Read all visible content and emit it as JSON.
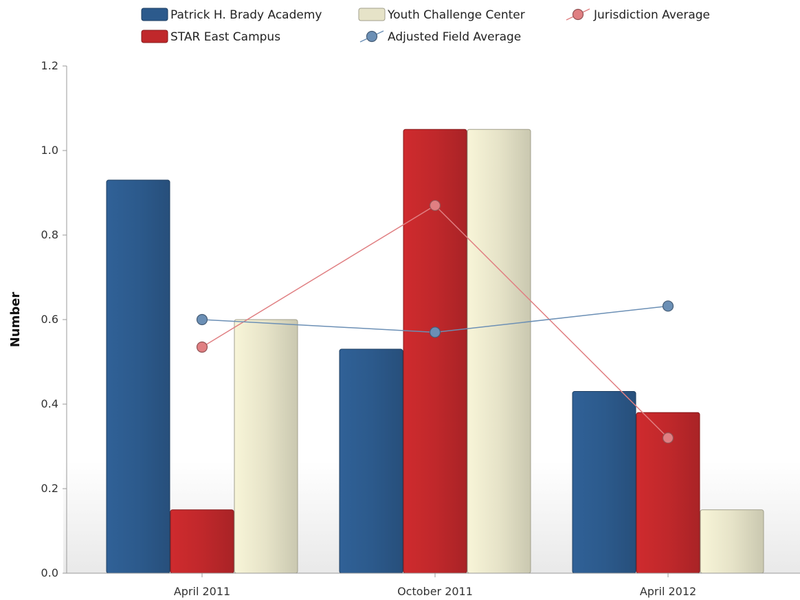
{
  "chart_data": {
    "type": "bar",
    "categories": [
      "April 2011",
      "October 2011",
      "April 2012"
    ],
    "series": [
      {
        "name": "Patrick H. Brady Academy",
        "kind": "bar",
        "color": "#2c5a8c",
        "values": [
          0.93,
          0.53,
          0.43
        ]
      },
      {
        "name": "STAR East Campus",
        "kind": "bar",
        "color": "#c0282b",
        "values": [
          0.15,
          1.05,
          0.38
        ]
      },
      {
        "name": "Youth Challenge Center",
        "kind": "bar",
        "color": "#e6e3c8",
        "values": [
          0.6,
          1.05,
          0.15
        ]
      },
      {
        "name": "Jurisdiction Average",
        "kind": "line",
        "color": "#e07f82",
        "values": [
          0.535,
          0.87,
          0.32
        ]
      },
      {
        "name": "Adjusted Field Average",
        "kind": "line",
        "color": "#6b8fb5",
        "values": [
          0.6,
          0.57,
          0.632
        ]
      }
    ],
    "ylabel": "Number",
    "xlabel": "",
    "ylim": [
      0,
      1.2
    ],
    "yticks": [
      "0.0",
      "0.2",
      "0.4",
      "0.6",
      "0.8",
      "1.0",
      "1.2"
    ],
    "legend_position": "top"
  }
}
